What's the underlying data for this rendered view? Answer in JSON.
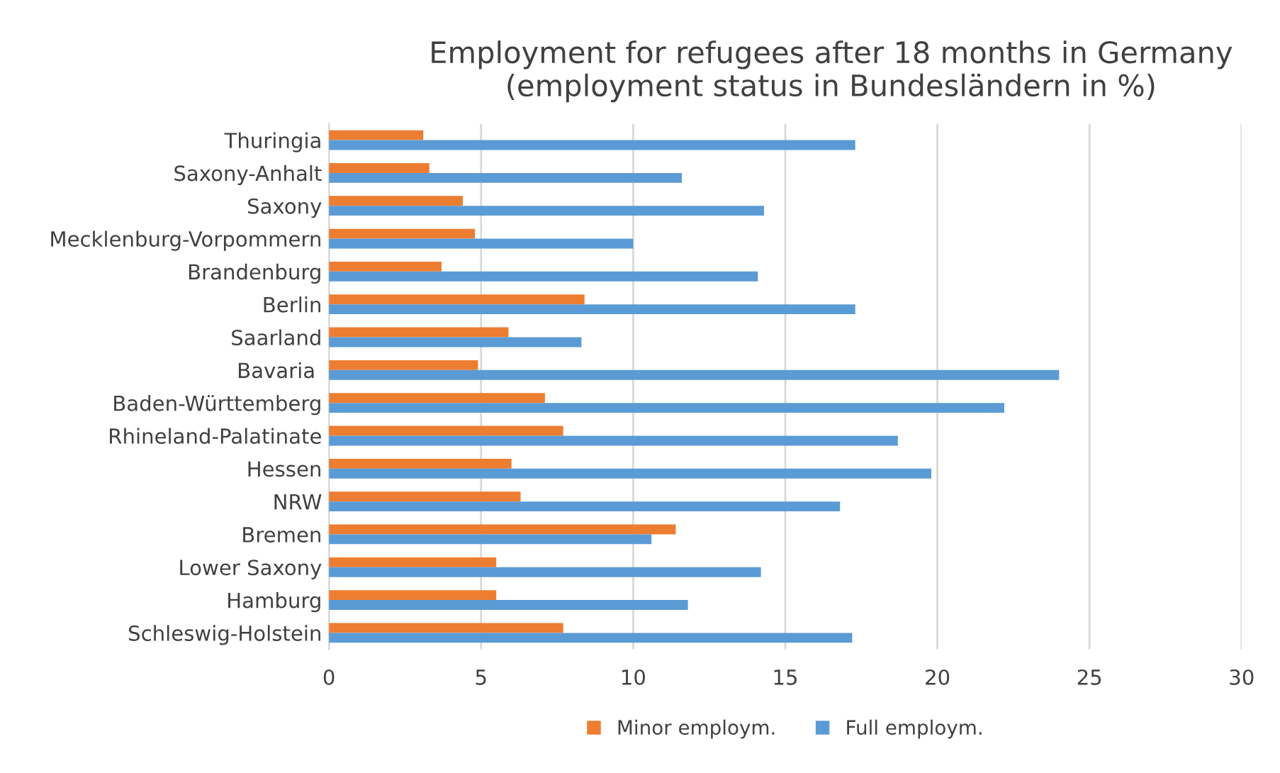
{
  "chart_data": {
    "type": "bar",
    "orientation": "horizontal",
    "title": "Employment for refugees after 18 months in Germany\n(employment status in Bundesländern in %)",
    "categories": [
      "Thuringia",
      "Saxony-Anhalt",
      "Saxony",
      "Mecklenburg-Vorpommern",
      "Brandenburg",
      "Berlin",
      "Saarland",
      "Bavaria ",
      "Baden-Württemberg",
      "Rhineland-Palatinate",
      "Hessen",
      "NRW",
      "Bremen",
      "Lower Saxony",
      "Hamburg",
      "Schleswig-Holstein"
    ],
    "series": [
      {
        "name": "Minor employm.",
        "color": "#ed7d31",
        "values": [
          3.1,
          3.3,
          4.4,
          4.8,
          3.7,
          8.4,
          5.9,
          4.9,
          7.1,
          7.7,
          6.0,
          6.3,
          11.4,
          5.5,
          5.5,
          7.7
        ]
      },
      {
        "name": "Full employm.",
        "color": "#5b9bd5",
        "values": [
          17.3,
          11.6,
          14.3,
          10.0,
          14.1,
          17.3,
          8.3,
          24.0,
          22.2,
          18.7,
          19.8,
          16.8,
          10.6,
          14.2,
          11.8,
          17.2
        ]
      }
    ],
    "xlim": [
      0,
      30
    ],
    "xticks": [
      0,
      5,
      10,
      15,
      20,
      25,
      30
    ],
    "grid": "x",
    "legend": "bottom"
  }
}
